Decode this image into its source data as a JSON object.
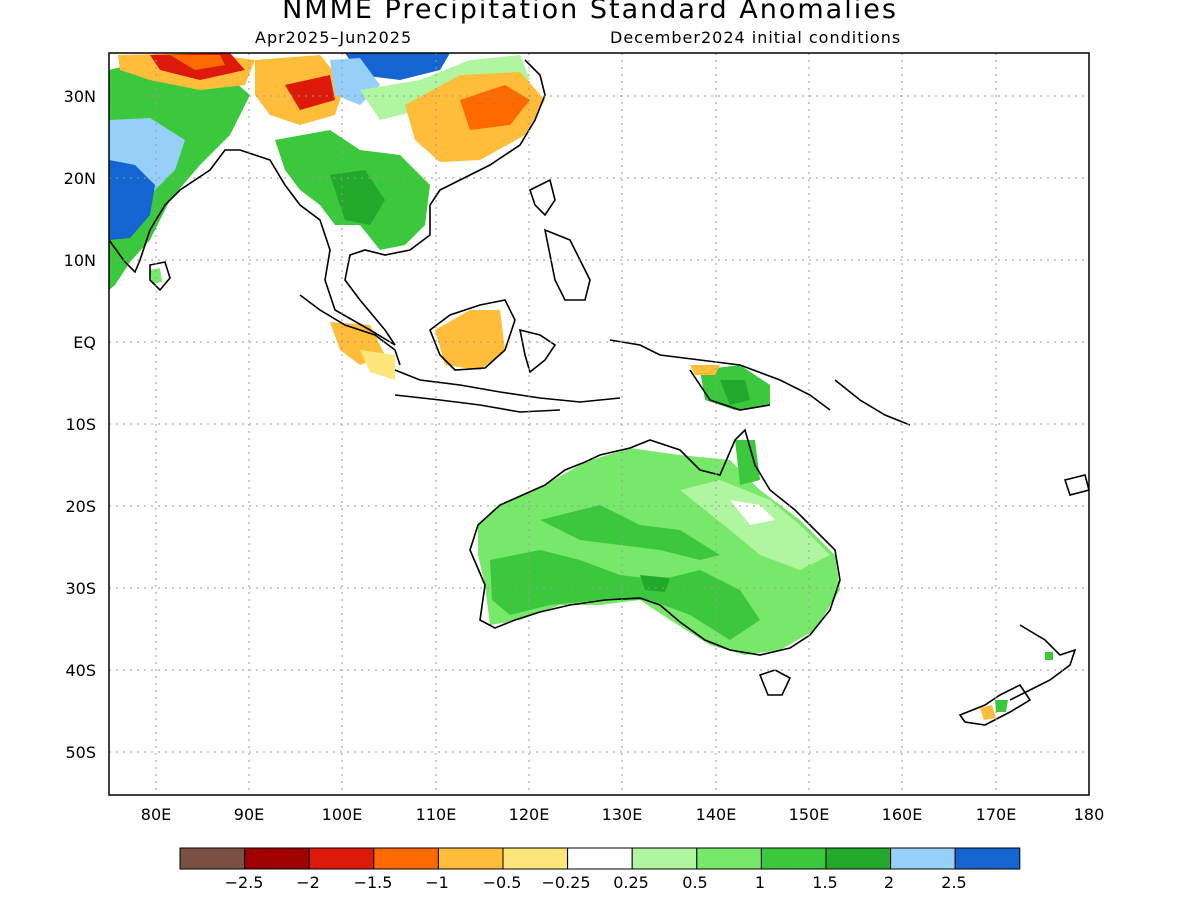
{
  "title": "NMME Precipitation Standard Anomalies",
  "subtitle_left": "Apr2025–Jun2025",
  "subtitle_right": "December2024 initial conditions",
  "map": {
    "lon_range": [
      75,
      180
    ],
    "lat_range": [
      -55,
      35
    ],
    "lat_ticks": [
      "30N",
      "20N",
      "10N",
      "EQ",
      "10S",
      "20S",
      "30S",
      "40S",
      "50S"
    ],
    "lon_ticks": [
      "80E",
      "90E",
      "100E",
      "110E",
      "120E",
      "130E",
      "140E",
      "150E",
      "160E",
      "170E",
      "180"
    ],
    "gridlines": "dotted"
  },
  "legend": {
    "colors": [
      "#7a5045",
      "#a00000",
      "#dd1a0a",
      "#ff6a00",
      "#ffbd3a",
      "#ffe67a",
      "#ffffff",
      "#b0f5a0",
      "#78e86a",
      "#3cc83c",
      "#22a82a",
      "#96d0f8",
      "#1464d2"
    ],
    "labels": [
      "−2.5",
      "−2",
      "−1.5",
      "−1",
      "−0.5",
      "−0.25",
      "0.25",
      "0.5",
      "1",
      "1.5",
      "2",
      "2.5"
    ]
  }
}
